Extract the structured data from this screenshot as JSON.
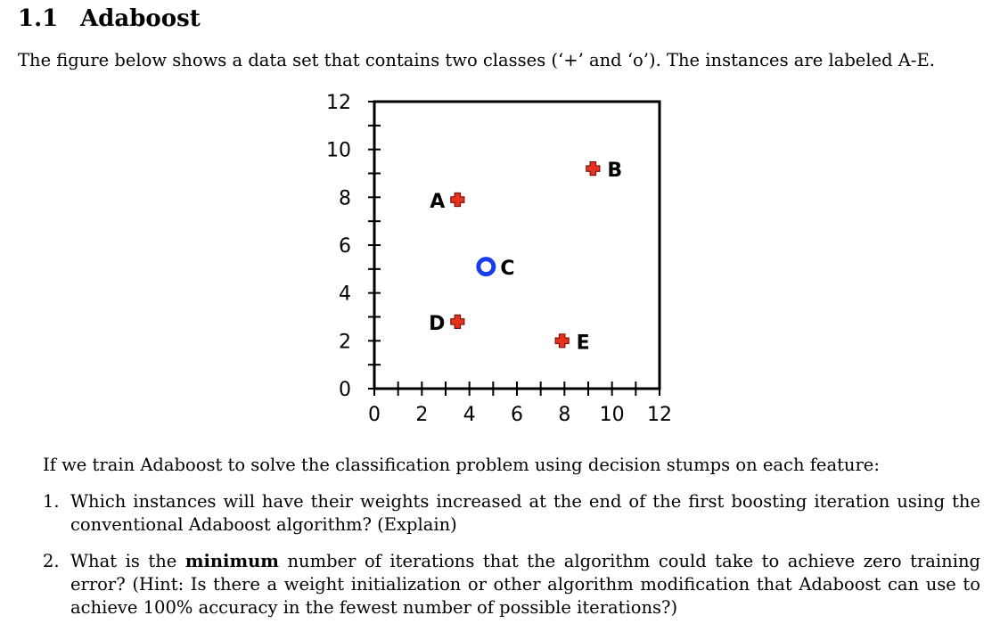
{
  "section": {
    "number": "1.1",
    "title": "Adaboost"
  },
  "intro": "The figure below shows a data set that contains two classes (‘+’ and ‘o’). The instances are labeled A-E.",
  "chart_data": {
    "type": "scatter",
    "title": "",
    "xlabel": "",
    "ylabel": "",
    "xlim": [
      0,
      12
    ],
    "ylim": [
      0,
      12
    ],
    "x_ticks": [
      "0",
      "2",
      "4",
      "6",
      "8",
      "10",
      "12"
    ],
    "y_ticks": [
      "0",
      "2",
      "4",
      "6",
      "8",
      "10",
      "12"
    ],
    "grid": false,
    "legend": "none",
    "colors": {
      "plus": "#e8321e",
      "circle": "#1a3cf0",
      "axis": "#000000"
    },
    "points": [
      {
        "label": "A",
        "x": 3.5,
        "y": 7.9,
        "class": "+",
        "label_side": "left"
      },
      {
        "label": "B",
        "x": 9.2,
        "y": 9.2,
        "class": "+",
        "label_side": "right"
      },
      {
        "label": "C",
        "x": 4.7,
        "y": 5.1,
        "class": "o",
        "label_side": "right"
      },
      {
        "label": "D",
        "x": 3.5,
        "y": 2.8,
        "class": "+",
        "label_side": "left"
      },
      {
        "label": "E",
        "x": 7.9,
        "y": 2.0,
        "class": "+",
        "label_side": "right"
      }
    ]
  },
  "question_intro": "If we train Adaboost to solve the classification problem using decision stumps on each feature:",
  "items": [
    {
      "marker": "1.",
      "parts": {
        "a": "Which instances will have their weights increased at the end of the first boosting iteration using the conventional Adaboost algorithm? (Explain)"
      }
    },
    {
      "marker": "2.",
      "parts": {
        "a": "What is the ",
        "b": "minimum",
        "c": " number of iterations that the algorithm could take to achieve zero training error? (Hint: Is there a weight initialization or other algorithm modification that Adaboost can use to achieve 100% accuracy in the fewest number of possible iterations?)"
      }
    }
  ]
}
